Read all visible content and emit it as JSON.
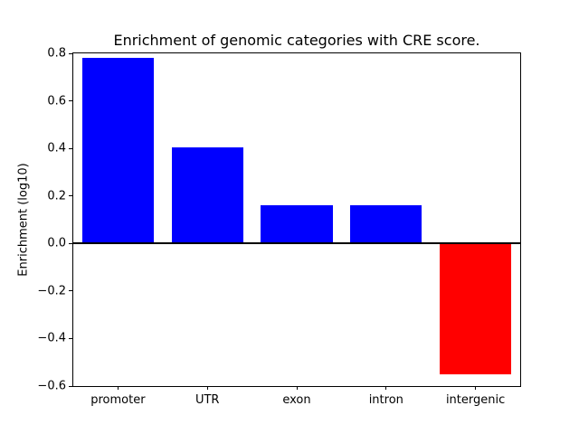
{
  "chart_data": {
    "type": "bar",
    "title": "Enrichment of genomic categories with CRE score.",
    "xlabel": "",
    "ylabel": "Enrichment (log10)",
    "categories": [
      "promoter",
      "UTR",
      "exon",
      "intron",
      "intergenic"
    ],
    "values": [
      0.78,
      0.405,
      0.16,
      0.16,
      -0.55
    ],
    "bar_colors": [
      "#0000ff",
      "#0000ff",
      "#0000ff",
      "#0000ff",
      "#ff0000"
    ],
    "positive_color": "#0000ff",
    "negative_color": "#ff0000",
    "ylim": [
      -0.6,
      0.8
    ],
    "yticks": [
      -0.6,
      -0.4,
      -0.2,
      0.0,
      0.2,
      0.4,
      0.6,
      0.8
    ],
    "zero_line": true,
    "grid": false,
    "legend_position": "none",
    "background_color": "#ffffff",
    "axis_color": "#000000"
  }
}
